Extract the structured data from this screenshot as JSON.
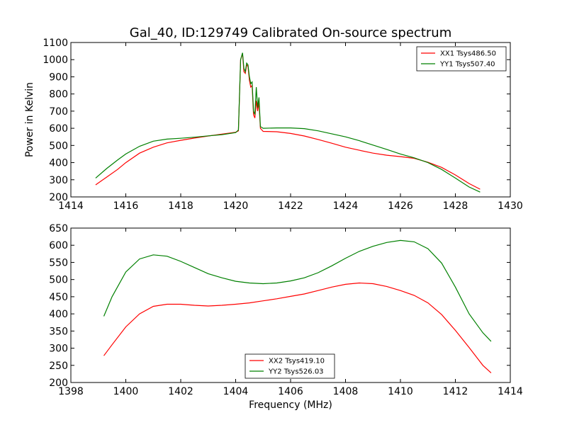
{
  "chart_data": [
    {
      "type": "line",
      "title": "Gal_40, ID:129749 Calibrated On-source spectrum",
      "xlabel": "",
      "ylabel": "Power in Kelvin",
      "xlim": [
        1414,
        1430
      ],
      "ylim": [
        200,
        1100
      ],
      "xticks": [
        "1414",
        "1416",
        "1418",
        "1420",
        "1422",
        "1424",
        "1426",
        "1428",
        "1430"
      ],
      "yticks": [
        "200",
        "300",
        "400",
        "500",
        "600",
        "700",
        "800",
        "900",
        "1000",
        "1100"
      ],
      "legend": {
        "placement": "top-right"
      },
      "series": [
        {
          "name": "XX1 Tsys486.50",
          "color": "#ff0000",
          "x": [
            1414.9,
            1415.3,
            1415.7,
            1416.0,
            1416.5,
            1417.0,
            1417.5,
            1418.0,
            1418.5,
            1419.0,
            1419.5,
            1420.0,
            1420.1,
            1420.18,
            1420.25,
            1420.3,
            1420.35,
            1420.4,
            1420.45,
            1420.5,
            1420.55,
            1420.6,
            1420.65,
            1420.7,
            1420.75,
            1420.8,
            1420.85,
            1420.9,
            1421.0,
            1421.5,
            1422.0,
            1422.5,
            1423.0,
            1423.5,
            1424.0,
            1424.5,
            1425.0,
            1425.5,
            1426.0,
            1426.5,
            1427.0,
            1427.5,
            1428.0,
            1428.5,
            1428.9
          ],
          "values": [
            270,
            315,
            360,
            400,
            455,
            490,
            515,
            530,
            543,
            555,
            566,
            577,
            585,
            1000,
            1035,
            930,
            920,
            970,
            960,
            880,
            840,
            850,
            680,
            660,
            760,
            700,
            750,
            600,
            582,
            580,
            570,
            555,
            535,
            513,
            490,
            472,
            455,
            443,
            435,
            425,
            402,
            372,
            328,
            278,
            245
          ]
        },
        {
          "name": "YY1 Tsys507.40",
          "color": "#008000",
          "x": [
            1414.9,
            1415.3,
            1415.7,
            1416.0,
            1416.5,
            1417.0,
            1417.5,
            1418.0,
            1418.5,
            1419.0,
            1419.5,
            1420.0,
            1420.1,
            1420.18,
            1420.25,
            1420.3,
            1420.35,
            1420.4,
            1420.45,
            1420.5,
            1420.55,
            1420.6,
            1420.65,
            1420.7,
            1420.75,
            1420.8,
            1420.85,
            1420.9,
            1421.0,
            1421.5,
            1422.0,
            1422.5,
            1423.0,
            1423.5,
            1424.0,
            1424.5,
            1425.0,
            1425.5,
            1426.0,
            1426.5,
            1427.0,
            1427.5,
            1428.0,
            1428.5,
            1428.9
          ],
          "values": [
            310,
            365,
            415,
            450,
            495,
            525,
            537,
            542,
            548,
            556,
            563,
            575,
            590,
            1000,
            1040,
            950,
            930,
            980,
            970,
            900,
            860,
            870,
            700,
            680,
            840,
            720,
            780,
            610,
            600,
            602,
            602,
            598,
            585,
            568,
            550,
            528,
            502,
            477,
            450,
            428,
            400,
            360,
            310,
            258,
            228
          ]
        }
      ]
    },
    {
      "type": "line",
      "title": "",
      "xlabel": "Frequency (MHz)",
      "ylabel": "",
      "xlim": [
        1398,
        1414
      ],
      "ylim": [
        200,
        650
      ],
      "xticks": [
        "1398",
        "1400",
        "1402",
        "1404",
        "1406",
        "1408",
        "1410",
        "1412",
        "1414"
      ],
      "yticks": [
        "200",
        "250",
        "300",
        "350",
        "400",
        "450",
        "500",
        "550",
        "600",
        "650"
      ],
      "legend": {
        "placement": "bottom-center"
      },
      "series": [
        {
          "name": "XX2 Tsys419.10",
          "color": "#ff0000",
          "x": [
            1399.2,
            1399.5,
            1400.0,
            1400.5,
            1401.0,
            1401.5,
            1402.0,
            1402.5,
            1403.0,
            1403.5,
            1404.0,
            1404.5,
            1405.0,
            1405.5,
            1406.0,
            1406.5,
            1407.0,
            1407.5,
            1408.0,
            1408.5,
            1409.0,
            1409.5,
            1410.0,
            1410.5,
            1411.0,
            1411.5,
            1412.0,
            1412.5,
            1413.0,
            1413.3
          ],
          "values": [
            278,
            310,
            362,
            400,
            422,
            428,
            428,
            425,
            423,
            425,
            428,
            432,
            438,
            444,
            451,
            458,
            468,
            478,
            486,
            490,
            488,
            480,
            468,
            454,
            432,
            398,
            352,
            302,
            250,
            228
          ]
        },
        {
          "name": "YY2 Tsys526.03",
          "color": "#008000",
          "x": [
            1399.2,
            1399.5,
            1400.0,
            1400.5,
            1401.0,
            1401.5,
            1402.0,
            1402.5,
            1403.0,
            1403.5,
            1404.0,
            1404.5,
            1405.0,
            1405.5,
            1406.0,
            1406.5,
            1407.0,
            1407.5,
            1408.0,
            1408.5,
            1409.0,
            1409.5,
            1410.0,
            1410.5,
            1411.0,
            1411.5,
            1412.0,
            1412.5,
            1413.0,
            1413.3
          ],
          "values": [
            393,
            450,
            522,
            560,
            572,
            568,
            553,
            535,
            517,
            505,
            495,
            490,
            488,
            490,
            496,
            505,
            520,
            540,
            562,
            582,
            597,
            608,
            614,
            610,
            590,
            548,
            478,
            400,
            345,
            320
          ]
        }
      ]
    }
  ]
}
